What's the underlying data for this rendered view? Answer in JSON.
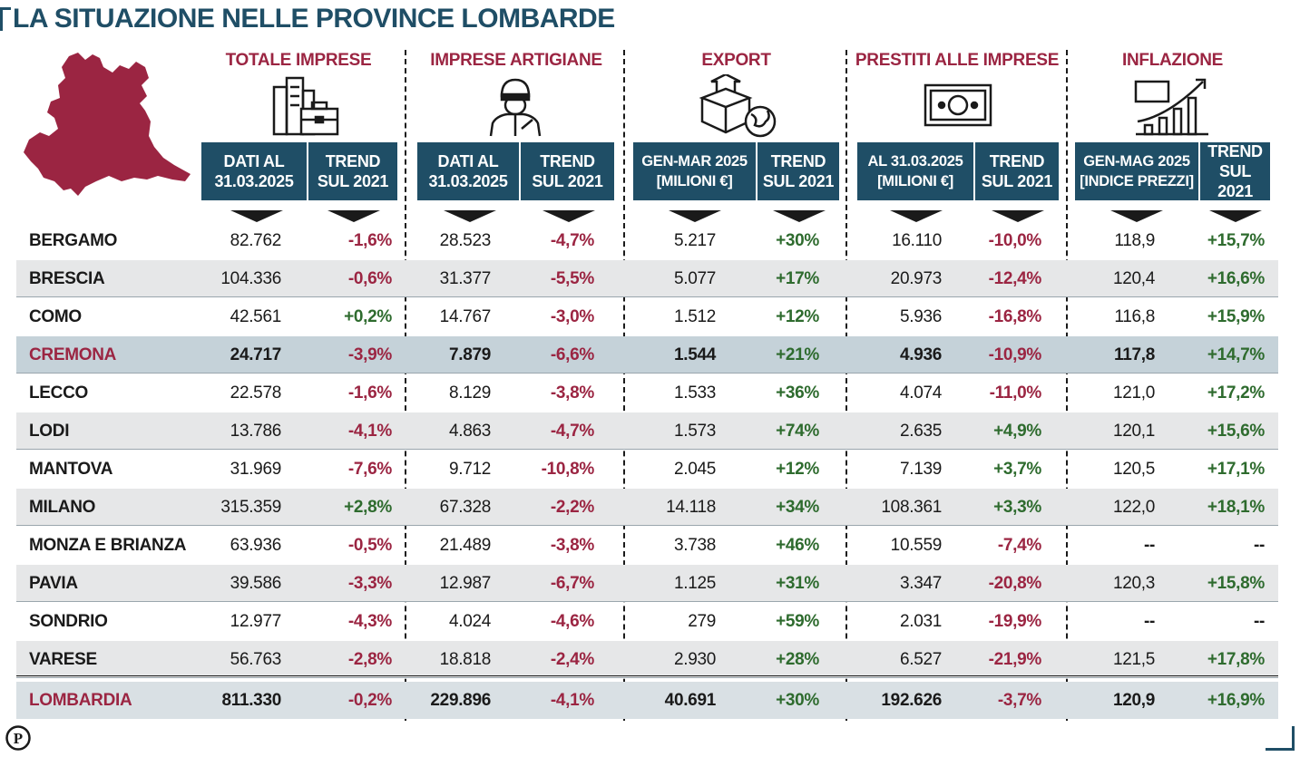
{
  "title": "LA SITUAZIONE NELLE PROVINCE LOMBARDE",
  "colors": {
    "brand_blue": "#1f4e66",
    "negative": "#9b2542",
    "positive": "#2e6b2e",
    "map": "#9b2542"
  },
  "sections": [
    {
      "title": "TOTALE IMPRESE",
      "icon": "buildings-briefcase-icon",
      "col1": "DATI AL\n31.03.2025",
      "col2": "TREND\nSUL 2021"
    },
    {
      "title": "IMPRESE ARTIGIANE",
      "icon": "craftsman-icon",
      "col1": "DATI AL\n31.03.2025",
      "col2": "TREND\nSUL 2021"
    },
    {
      "title": "EXPORT",
      "icon": "box-globe-icon",
      "col1": "GEN-MAR 2025\n[MILIONI €]",
      "col2": "TREND\nSUL 2021"
    },
    {
      "title": "PRESTITI ALLE IMPRESE",
      "icon": "banknote-icon",
      "col1": "AL 31.03.2025\n[MILIONI €]",
      "col2": "TREND\nSUL 2021"
    },
    {
      "title": "INFLAZIONE",
      "icon": "rising-chart-icon",
      "col1": "GEN-MAG 2025\n[INDICE PREZZI]",
      "col2": "TREND\nSUL 2021"
    }
  ],
  "rows": [
    {
      "name": "BERGAMO",
      "v": [
        "82.762",
        "-1,6%",
        "28.523",
        "-4,7%",
        "5.217",
        "+30%",
        "16.110",
        "-10,0%",
        "118,9",
        "+15,7%"
      ]
    },
    {
      "name": "BRESCIA",
      "v": [
        "104.336",
        "-0,6%",
        "31.377",
        "-5,5%",
        "5.077",
        "+17%",
        "20.973",
        "-12,4%",
        "120,4",
        "+16,6%"
      ]
    },
    {
      "name": "COMO",
      "v": [
        "42.561",
        "+0,2%",
        "14.767",
        "-3,0%",
        "1.512",
        "+12%",
        "5.936",
        "-16,8%",
        "116,8",
        "+15,9%"
      ]
    },
    {
      "name": "CREMONA",
      "v": [
        "24.717",
        "-3,9%",
        "7.879",
        "-6,6%",
        "1.544",
        "+21%",
        "4.936",
        "-10,9%",
        "117,8",
        "+14,7%"
      ]
    },
    {
      "name": "LECCO",
      "v": [
        "22.578",
        "-1,6%",
        "8.129",
        "-3,8%",
        "1.533",
        "+36%",
        "4.074",
        "-11,0%",
        "121,0",
        "+17,2%"
      ]
    },
    {
      "name": "LODI",
      "v": [
        "13.786",
        "-4,1%",
        "4.863",
        "-4,7%",
        "1.573",
        "+74%",
        "2.635",
        "+4,9%",
        "120,1",
        "+15,6%"
      ]
    },
    {
      "name": "MANTOVA",
      "v": [
        "31.969",
        "-7,6%",
        "9.712",
        "-10,8%",
        "2.045",
        "+12%",
        "7.139",
        "+3,7%",
        "120,5",
        "+17,1%"
      ]
    },
    {
      "name": "MILANO",
      "v": [
        "315.359",
        "+2,8%",
        "67.328",
        "-2,2%",
        "14.118",
        "+34%",
        "108.361",
        "+3,3%",
        "122,0",
        "+18,1%"
      ]
    },
    {
      "name": "MONZA E BRIANZA",
      "v": [
        "63.936",
        "-0,5%",
        "21.489",
        "-3,8%",
        "3.738",
        "+46%",
        "10.559",
        "-7,4%",
        "--",
        "--"
      ]
    },
    {
      "name": "PAVIA",
      "v": [
        "39.586",
        "-3,3%",
        "12.987",
        "-6,7%",
        "1.125",
        "+31%",
        "3.347",
        "-20,8%",
        "120,3",
        "+15,8%"
      ]
    },
    {
      "name": "SONDRIO",
      "v": [
        "12.977",
        "-4,3%",
        "4.024",
        "-4,6%",
        "279",
        "+59%",
        "2.031",
        "-19,9%",
        "--",
        "--"
      ]
    },
    {
      "name": "VARESE",
      "v": [
        "56.763",
        "-2,8%",
        "18.818",
        "-2,4%",
        "2.930",
        "+28%",
        "6.527",
        "-21,9%",
        "121,5",
        "+17,8%"
      ]
    }
  ],
  "total": {
    "name": "LOMBARDIA",
    "v": [
      "811.330",
      "-0,2%",
      "229.896",
      "-4,1%",
      "40.691",
      "+30%",
      "192.626",
      "-3,7%",
      "120,9",
      "+16,9%"
    ]
  },
  "logo_letter": "P"
}
